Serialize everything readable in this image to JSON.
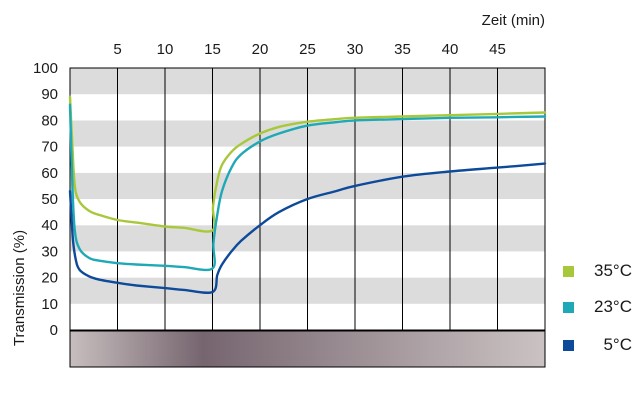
{
  "chart_data": {
    "type": "line",
    "title": "",
    "xlabel": "Zeit (min)",
    "ylabel": "Transmission (%)",
    "xlim": [
      0,
      50
    ],
    "ylim": [
      0,
      100
    ],
    "xticks": [
      5,
      10,
      15,
      20,
      25,
      30,
      35,
      40,
      45
    ],
    "yticks": [
      0,
      10,
      20,
      30,
      40,
      50,
      60,
      70,
      80,
      90,
      100
    ],
    "grid": "horizontal bands alternating grey/white every 10 %, vertical lines every 5 min",
    "legend_position": "right",
    "series": [
      {
        "name": "35°C",
        "color": "#a8c83c",
        "x": [
          0,
          0.25,
          0.5,
          1,
          2,
          3,
          5,
          7,
          10,
          12,
          15,
          15.05,
          15.5,
          16,
          17,
          18,
          20,
          22,
          25,
          28,
          30,
          35,
          40,
          45,
          50
        ],
        "y": [
          89,
          70,
          55,
          49,
          45.5,
          44,
          42,
          41,
          39.5,
          39,
          38,
          47,
          57,
          63,
          68,
          71,
          75,
          77.5,
          79.5,
          80.5,
          81,
          81.5,
          82,
          82.5,
          83
        ]
      },
      {
        "name": "23°C",
        "color": "#1fa9b6",
        "x": [
          0,
          0.25,
          0.5,
          1,
          2,
          3,
          5,
          7,
          10,
          12,
          15,
          15.1,
          15.5,
          16,
          17,
          18,
          20,
          22,
          25,
          28,
          30,
          35,
          40,
          45,
          50
        ],
        "y": [
          86,
          55,
          38,
          31,
          27.5,
          26.5,
          25.5,
          25,
          24.5,
          24,
          23.5,
          33,
          44,
          53,
          62,
          67,
          72,
          75,
          78,
          79.3,
          80,
          80.5,
          81,
          81.2,
          81.5
        ]
      },
      {
        "name": "5°C",
        "color": "#0e4a9a",
        "x": [
          0,
          0.3,
          0.6,
          1,
          2,
          3,
          5,
          7,
          10,
          12,
          15,
          15.5,
          16,
          17,
          18,
          20,
          22,
          25,
          28,
          30,
          35,
          40,
          45,
          50
        ],
        "y": [
          53,
          35,
          27,
          23,
          20.5,
          19.3,
          18,
          17,
          16,
          15.3,
          14.5,
          21,
          25,
          30,
          34,
          40,
          45,
          50,
          53,
          55,
          58.5,
          60.5,
          62,
          63.5
        ]
      }
    ]
  },
  "bar_gradient_colors": [
    "#c9c0c0",
    "#7a6a74",
    "#c9c0c0"
  ]
}
